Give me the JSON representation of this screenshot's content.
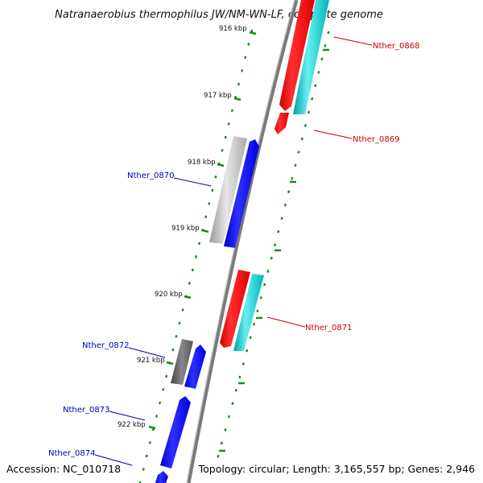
{
  "title": "Natranaerobius thermophilus JW/NM-WN-LF, complete genome",
  "accession": "Accession: NC_010718",
  "topology": "Topology: circular; Length: 3,165,557 bp; Genes: 2,946",
  "colors": {
    "label_red": "#cc0000",
    "label_blue": "#0000bb",
    "tick_green": "#1a8a1a",
    "backbone": "#888888"
  },
  "scale": {
    "unit": "kbp",
    "ticks": [
      {
        "label": "916 kbp"
      },
      {
        "label": "917 kbp"
      },
      {
        "label": "918 kbp"
      },
      {
        "label": "919 kbp"
      },
      {
        "label": "920 kbp"
      },
      {
        "label": "921 kbp"
      },
      {
        "label": "922 kbp"
      }
    ]
  },
  "genes": [
    {
      "name": "Nther_0868",
      "strand": "forward",
      "color": "red"
    },
    {
      "name": "Nther_0869",
      "strand": "forward",
      "color": "red"
    },
    {
      "name": "Nther_0870",
      "strand": "reverse",
      "color": "blue"
    },
    {
      "name": "Nther_0871",
      "strand": "forward",
      "color": "red"
    },
    {
      "name": "Nther_0872",
      "strand": "reverse",
      "color": "blue"
    },
    {
      "name": "Nther_0873",
      "strand": "reverse",
      "color": "blue"
    },
    {
      "name": "Nther_0874",
      "strand": "reverse",
      "color": "blue"
    }
  ]
}
